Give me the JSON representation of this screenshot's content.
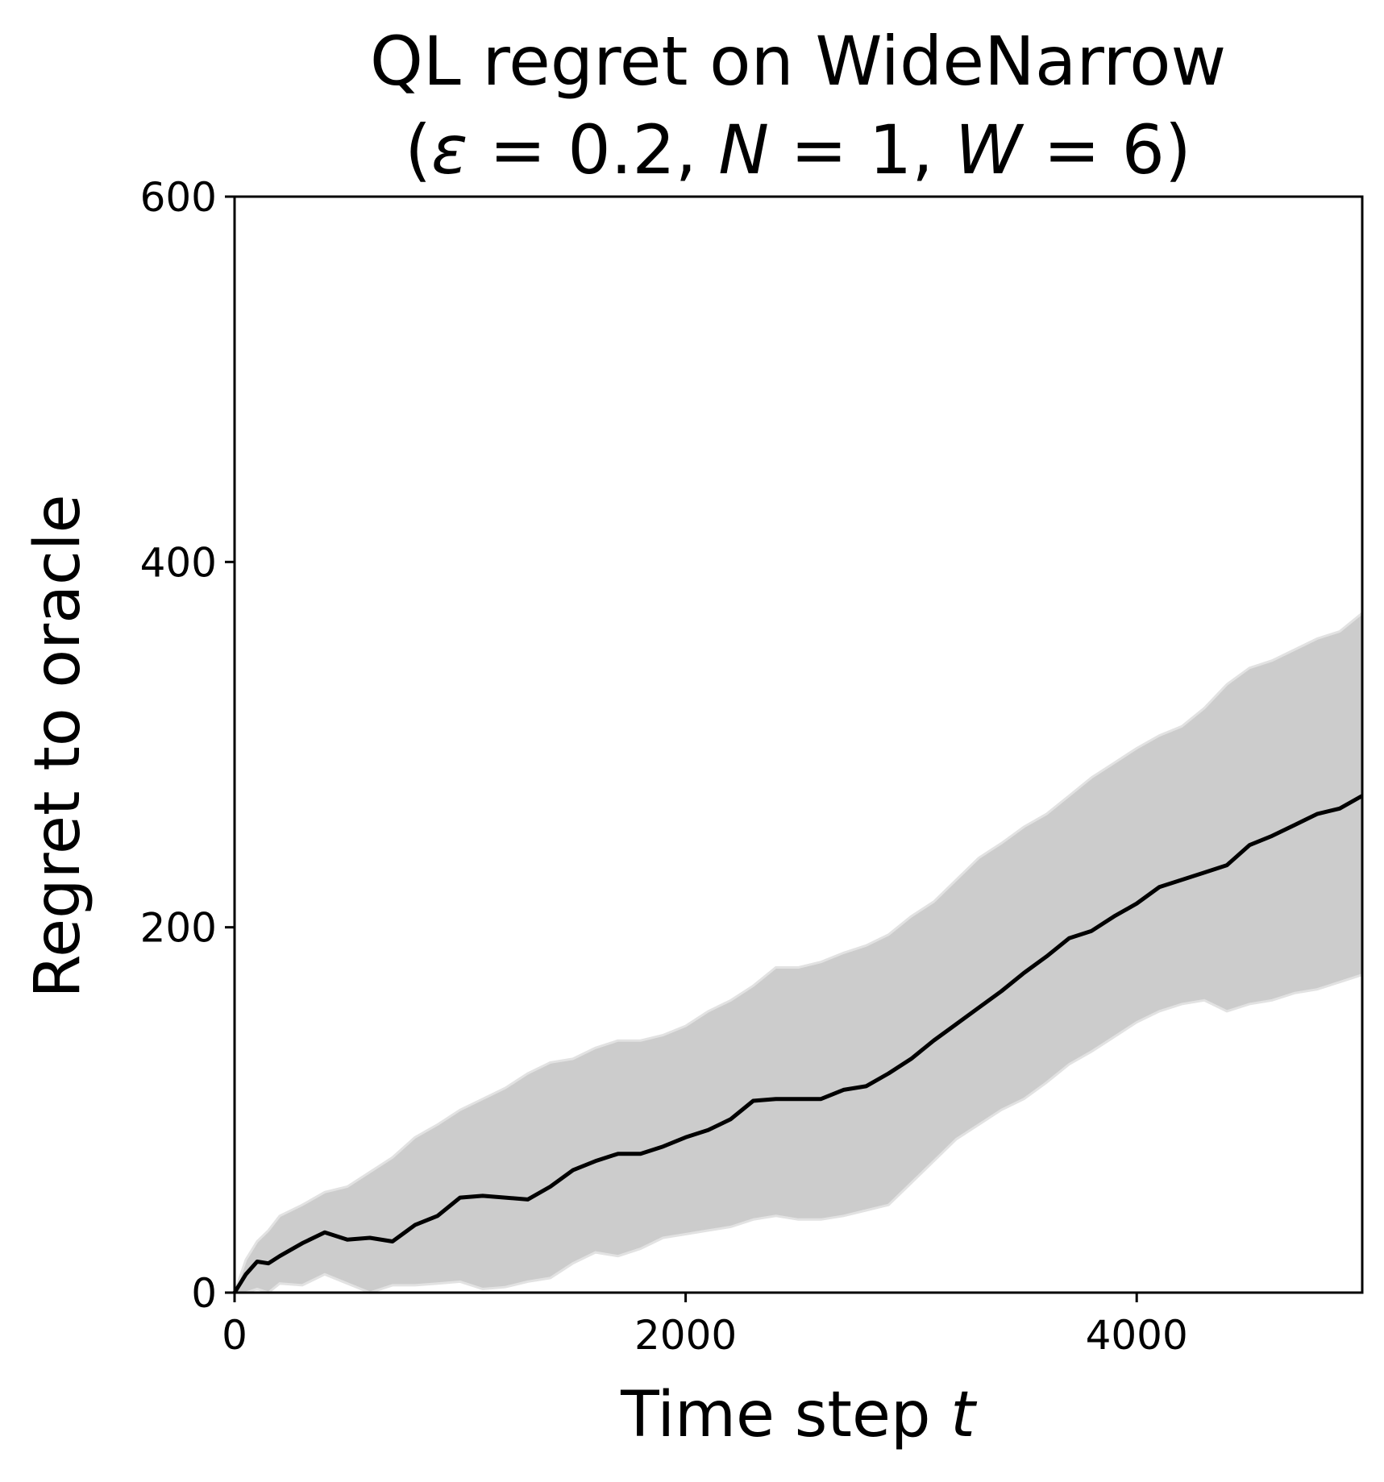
{
  "chart_data": {
    "type": "line",
    "title_line1": "QL regret on WideNarrow",
    "title_line2": {
      "open": "(",
      "eps": "ε",
      "eq1": " = 0.2, ",
      "n": "N",
      "eq2": " = 1, ",
      "w": "W",
      "eq3": " = 6)"
    },
    "xlabel": "Time step ",
    "xlabel_var": "t",
    "ylabel": "Regret to oracle",
    "xlim": [
      0,
      5000
    ],
    "ylim": [
      0,
      600
    ],
    "xticks": [
      0,
      2000,
      4000
    ],
    "xtick_labels": [
      "0",
      "2000",
      "4000"
    ],
    "yticks": [
      0,
      200,
      400,
      600
    ],
    "ytick_labels": [
      "0",
      "200",
      "400",
      "600"
    ],
    "grid": false,
    "colors": {
      "mean_line": "#000000",
      "band_fill": "#cccccc",
      "band_edge": "#e2e2e2",
      "frame": "#000000"
    },
    "series": [
      {
        "x": [
          0,
          50,
          100,
          150,
          200,
          300,
          400,
          500,
          600,
          700,
          800,
          900,
          1000,
          1100,
          1200,
          1300,
          1400,
          1500,
          1600,
          1700,
          1800,
          1900,
          2000,
          2100,
          2200,
          2300,
          2400,
          2500,
          2600,
          2700,
          2800,
          2900,
          3000,
          3100,
          3200,
          3300,
          3400,
          3500,
          3600,
          3700,
          3800,
          3900,
          4000,
          4100,
          4200,
          4300,
          4400,
          4500,
          4600,
          4700,
          4800,
          4900,
          5000
        ],
        "values": [
          0,
          10,
          17,
          16,
          20,
          27,
          33,
          29,
          30,
          28,
          37,
          42,
          52,
          53,
          52,
          51,
          58,
          67,
          72,
          76,
          76,
          80,
          85,
          89,
          95,
          105,
          106,
          106,
          106,
          111,
          113,
          120,
          128,
          138,
          147,
          156,
          165,
          175,
          184,
          194,
          198,
          206,
          213,
          222,
          226,
          230,
          234,
          245,
          250,
          256,
          262,
          265,
          272
        ]
      }
    ],
    "band": {
      "upper": [
        0,
        18,
        28,
        34,
        42,
        48,
        55,
        58,
        66,
        74,
        85,
        92,
        100,
        106,
        112,
        120,
        126,
        128,
        134,
        138,
        138,
        141,
        146,
        154,
        160,
        168,
        178,
        178,
        181,
        186,
        190,
        196,
        206,
        214,
        226,
        238,
        246,
        255,
        262,
        272,
        282,
        290,
        298,
        305,
        310,
        320,
        333,
        342,
        346,
        352,
        358,
        362,
        372
      ],
      "lower": [
        0,
        0,
        2,
        0,
        5,
        4,
        10,
        5,
        0,
        4,
        4,
        5,
        6,
        2,
        3,
        6,
        8,
        16,
        22,
        20,
        24,
        30,
        32,
        34,
        36,
        40,
        42,
        40,
        40,
        42,
        45,
        48,
        60,
        72,
        84,
        92,
        100,
        106,
        115,
        125,
        132,
        140,
        148,
        154,
        158,
        160,
        154,
        158,
        160,
        164,
        166,
        170,
        174
      ]
    }
  }
}
